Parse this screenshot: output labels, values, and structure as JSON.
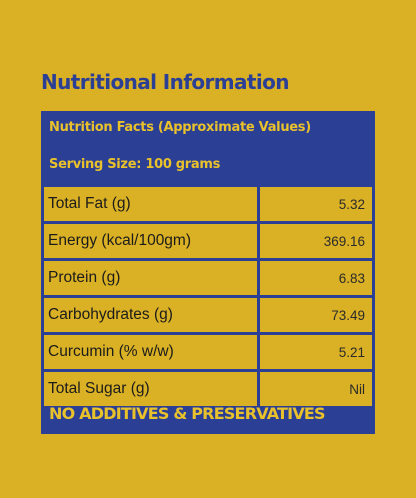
{
  "heading": "Nutritional Information",
  "panel": {
    "title": "Nutrition Facts (Approximate Values)",
    "serving_size": "Serving Size: 100 grams",
    "rows": [
      {
        "name": "Total Fat (g)",
        "value": "5.32"
      },
      {
        "name": "Energy (kcal/100gm)",
        "value": "369.16"
      },
      {
        "name": "Protein (g)",
        "value": "6.83"
      },
      {
        "name": "Carbohydrates (g)",
        "value": "73.49"
      },
      {
        "name": "Curcumin (% w/w)",
        "value": "5.21"
      },
      {
        "name": "Total Sugar (g)",
        "value": "Nil"
      }
    ],
    "footer": "NO ADDITIVES & PRESERVATIVES"
  },
  "colors": {
    "background": "#dab125",
    "panel_blue": "#2b3f94",
    "panel_text": "#e9c22b",
    "cell_text": "#1b1b1b"
  }
}
